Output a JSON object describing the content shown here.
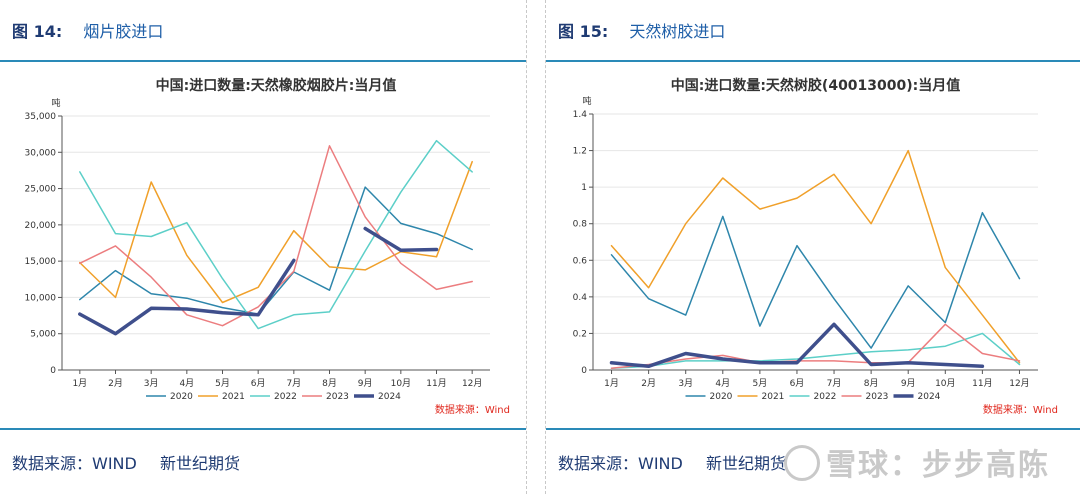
{
  "panels": [
    {
      "fig_num": "图  14:",
      "fig_title": "烟片胶进口",
      "source_text": "数据来源：WIND",
      "source_org": "新世纪期货"
    },
    {
      "fig_num": "图  15:",
      "fig_title": "天然树胶进口",
      "source_text": "数据来源：WIND",
      "source_org": "新世纪期货"
    }
  ],
  "watermark": "雪球：步步高陈",
  "chart_data": [
    {
      "type": "line",
      "title": "中国:进口数量:天然橡胶烟胶片:当月值",
      "unit": "吨",
      "source_note": "数据来源：Wind",
      "categories": [
        "1月",
        "2月",
        "3月",
        "4月",
        "5月",
        "6月",
        "7月",
        "8月",
        "9月",
        "10月",
        "11月",
        "12月"
      ],
      "ylim": [
        0,
        35000
      ],
      "yticks": [
        0,
        5000,
        10000,
        15000,
        20000,
        25000,
        30000,
        35000
      ],
      "ytick_labels": [
        "0",
        "5,000",
        "10,000",
        "15,000",
        "20,000",
        "25,000",
        "30,000",
        "35,000"
      ],
      "grid": true,
      "legend": "bottom",
      "series": [
        {
          "name": "2020",
          "color": "#2e86ab",
          "width": 1.5,
          "values": [
            9700,
            13700,
            10500,
            9900,
            8600,
            7700,
            13500,
            11000,
            25200,
            20200,
            18800,
            16600
          ]
        },
        {
          "name": "2021",
          "color": "#f0a02a",
          "width": 1.5,
          "values": [
            14800,
            10000,
            25900,
            15800,
            9300,
            11400,
            19200,
            14200,
            13800,
            16300,
            15600,
            28700
          ]
        },
        {
          "name": "2022",
          "color": "#5ccfc8",
          "width": 1.5,
          "values": [
            27300,
            18800,
            18400,
            20300,
            12600,
            5700,
            7600,
            8000,
            16400,
            24500,
            31600,
            27300
          ]
        },
        {
          "name": "2023",
          "color": "#ec7d7f",
          "width": 1.5,
          "values": [
            14700,
            17100,
            12800,
            7600,
            6100,
            8700,
            13600,
            30900,
            21100,
            14700,
            11100,
            12200
          ]
        },
        {
          "name": "2024",
          "color": "#3f4f8c",
          "width": 3.5,
          "values": [
            7700,
            5000,
            8500,
            8400,
            7900,
            7600,
            15100,
            null,
            19500,
            16500,
            16600,
            null
          ]
        }
      ]
    },
    {
      "type": "line",
      "title": "中国:进口数量:天然树胶(40013000):当月值",
      "unit": "吨",
      "source_note": "数据来源：Wind",
      "categories": [
        "1月",
        "2月",
        "3月",
        "4月",
        "5月",
        "6月",
        "7月",
        "8月",
        "9月",
        "10月",
        "11月",
        "12月"
      ],
      "ylim": [
        0,
        1.4
      ],
      "yticks": [
        0,
        0.2,
        0.4,
        0.6,
        0.8,
        1,
        1.2,
        1.4
      ],
      "ytick_labels": [
        "0",
        "0.2",
        "0.4",
        "0.6",
        "0.8",
        "1",
        "1.2",
        "1.4"
      ],
      "grid": true,
      "legend": "bottom",
      "series": [
        {
          "name": "2020",
          "color": "#2e86ab",
          "width": 1.5,
          "values": [
            0.63,
            0.39,
            0.3,
            0.84,
            0.24,
            0.68,
            0.39,
            0.12,
            0.46,
            0.26,
            0.86,
            0.5
          ]
        },
        {
          "name": "2021",
          "color": "#f0a02a",
          "width": 1.5,
          "values": [
            0.68,
            0.45,
            0.8,
            1.05,
            0.88,
            0.94,
            1.07,
            0.8,
            1.2,
            0.56,
            0.3,
            0.04
          ]
        },
        {
          "name": "2022",
          "color": "#5ccfc8",
          "width": 1.5,
          "values": [
            0.01,
            0.02,
            0.05,
            0.05,
            0.05,
            0.06,
            0.08,
            0.1,
            0.11,
            0.13,
            0.2,
            0.03
          ]
        },
        {
          "name": "2023",
          "color": "#ec7d7f",
          "width": 1.5,
          "values": [
            0.01,
            0.03,
            0.06,
            0.08,
            0.04,
            0.05,
            0.05,
            0.04,
            0.04,
            0.25,
            0.09,
            0.05
          ]
        },
        {
          "name": "2024",
          "color": "#3f4f8c",
          "width": 3.5,
          "values": [
            0.04,
            0.02,
            0.09,
            0.06,
            0.04,
            0.04,
            0.25,
            0.03,
            0.04,
            0.03,
            0.02,
            null
          ]
        }
      ]
    }
  ]
}
